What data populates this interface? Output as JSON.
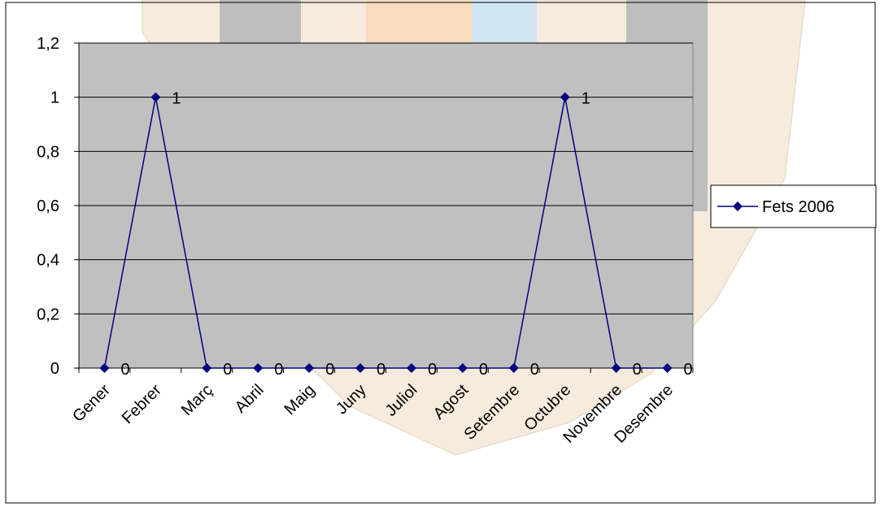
{
  "chart_data": {
    "type": "line",
    "categories": [
      "Gener",
      "Febrer",
      "Març",
      "Abril",
      "Maig",
      "Juny",
      "Juliol",
      "Agost",
      "Setembre",
      "Octubre",
      "Novembre",
      "Desembre"
    ],
    "series": [
      {
        "name": "Fets 2006",
        "color": "#000080",
        "values": [
          0,
          1,
          0,
          0,
          0,
          0,
          0,
          0,
          0,
          1,
          0,
          0
        ]
      }
    ],
    "ylim": [
      0,
      1.2
    ],
    "yticks": [
      0,
      {
        "value": 0.2,
        "label": "0,2"
      },
      {
        "value": 0.4,
        "label": "0,4"
      },
      {
        "value": 0.6,
        "label": "0,6"
      },
      {
        "value": 0.8,
        "label": "0,8"
      },
      1,
      {
        "value": 1.2,
        "label": "1,2"
      }
    ],
    "grid": true,
    "legend": "right",
    "plot_background": "#c0c0c0"
  }
}
